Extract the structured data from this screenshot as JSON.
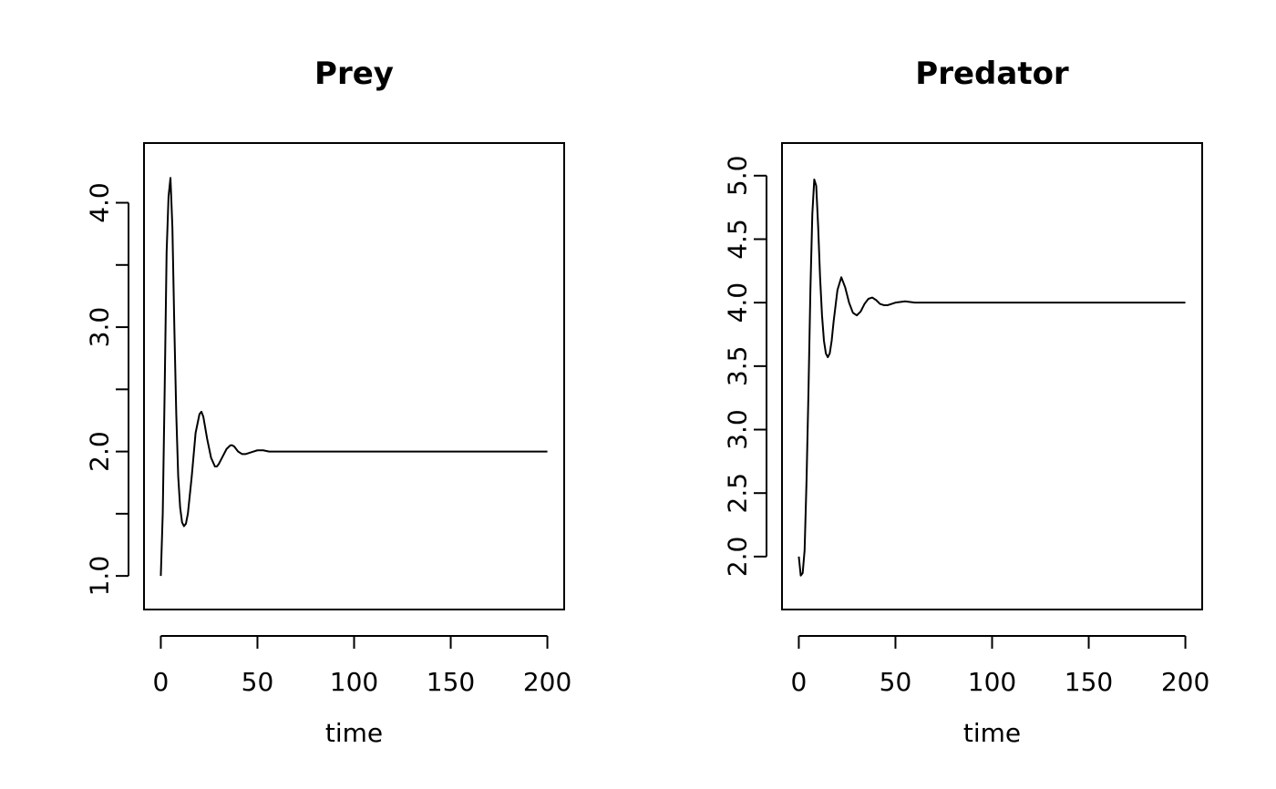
{
  "chart_data": [
    {
      "type": "line",
      "title": "Prey",
      "xlabel": "time",
      "ylabel": "",
      "xlim": [
        0,
        200
      ],
      "ylim": [
        0.88,
        4.33
      ],
      "xticks": [
        0,
        50,
        100,
        150,
        200
      ],
      "xtick_labels": [
        "0",
        "50",
        "100",
        "150",
        "200"
      ],
      "yticks": [
        1.0,
        1.5,
        2.0,
        2.5,
        3.0,
        3.5,
        4.0
      ],
      "ytick_labels": [
        "1.0",
        "",
        "2.0",
        "",
        "3.0",
        "",
        "4.0"
      ],
      "grid": false,
      "series": [
        {
          "x": [
            0,
            1,
            2,
            3,
            4,
            5,
            6,
            7,
            8,
            9,
            10,
            11,
            12,
            13,
            14,
            16,
            18,
            20,
            21,
            22,
            24,
            26,
            28,
            29,
            30,
            32,
            34,
            36,
            37,
            38,
            40,
            42,
            44,
            46,
            48,
            50,
            53,
            56,
            60,
            65,
            70,
            80,
            90,
            100,
            120,
            150,
            200
          ],
          "y": [
            1.0,
            1.5,
            2.5,
            3.6,
            4.05,
            4.2,
            3.8,
            3.0,
            2.3,
            1.8,
            1.55,
            1.43,
            1.4,
            1.42,
            1.5,
            1.8,
            2.15,
            2.3,
            2.32,
            2.28,
            2.1,
            1.95,
            1.88,
            1.88,
            1.9,
            1.96,
            2.02,
            2.05,
            2.05,
            2.04,
            2.0,
            1.98,
            1.98,
            1.99,
            2.0,
            2.01,
            2.01,
            2.0,
            2.0,
            2.0,
            2.0,
            2.0,
            2.0,
            2.0,
            2.0,
            2.0,
            2.0
          ]
        }
      ]
    },
    {
      "type": "line",
      "title": "Predator",
      "xlabel": "time",
      "ylabel": "",
      "xlim": [
        0,
        200
      ],
      "ylim": [
        1.73,
        5.11
      ],
      "xticks": [
        0,
        50,
        100,
        150,
        200
      ],
      "xtick_labels": [
        "0",
        "50",
        "100",
        "150",
        "200"
      ],
      "yticks": [
        2.0,
        2.5,
        3.0,
        3.5,
        4.0,
        4.5,
        5.0
      ],
      "ytick_labels": [
        "2.0",
        "2.5",
        "3.0",
        "3.5",
        "4.0",
        "4.5",
        "5.0"
      ],
      "grid": false,
      "series": [
        {
          "x": [
            0,
            1,
            2,
            3,
            4,
            5,
            6,
            7,
            8,
            9,
            10,
            11,
            12,
            13,
            14,
            15,
            16,
            17,
            18,
            20,
            22,
            24,
            26,
            28,
            30,
            32,
            34,
            36,
            38,
            40,
            42,
            44,
            46,
            48,
            50,
            55,
            60,
            65,
            70,
            80,
            90,
            100,
            120,
            150,
            200
          ],
          "y": [
            2.0,
            1.85,
            1.87,
            2.05,
            2.6,
            3.3,
            4.1,
            4.7,
            4.97,
            4.92,
            4.6,
            4.2,
            3.9,
            3.7,
            3.6,
            3.57,
            3.6,
            3.7,
            3.85,
            4.1,
            4.2,
            4.12,
            4.0,
            3.92,
            3.9,
            3.93,
            3.99,
            4.03,
            4.04,
            4.02,
            3.99,
            3.98,
            3.98,
            3.99,
            4.0,
            4.01,
            4.0,
            4.0,
            4.0,
            4.0,
            4.0,
            4.0,
            4.0,
            4.0,
            4.0
          ]
        }
      ]
    }
  ]
}
